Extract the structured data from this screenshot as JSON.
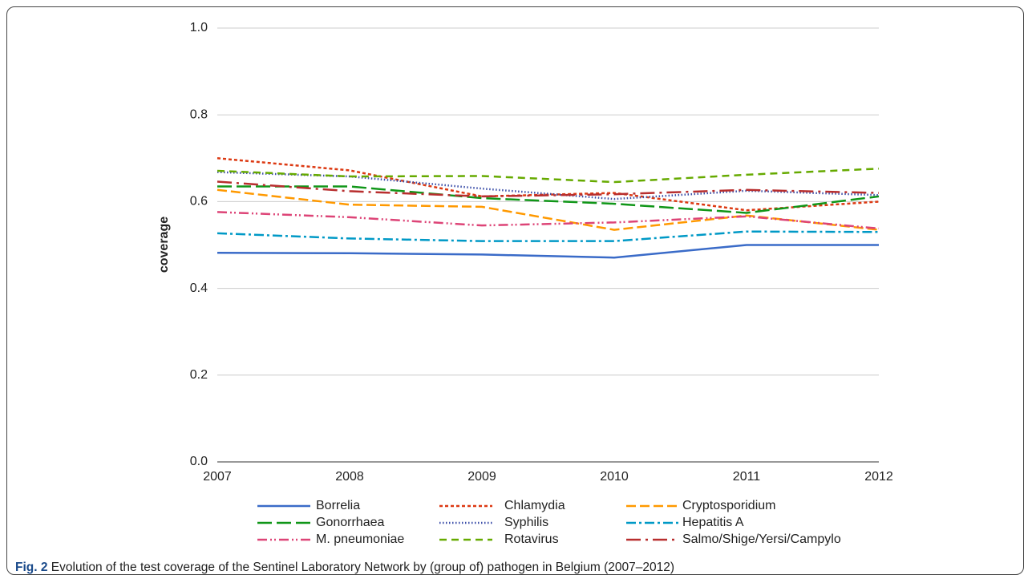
{
  "chart_data": {
    "type": "line",
    "ylabel": "coverage",
    "x": [
      2007,
      2008,
      2009,
      2010,
      2011,
      2012
    ],
    "xlim": [
      2007,
      2012
    ],
    "xticks": [
      2007,
      2008,
      2009,
      2010,
      2011,
      2012
    ],
    "ylim": [
      0,
      1
    ],
    "yticks": [
      {
        "value": 0,
        "label": "0.0"
      },
      0.2,
      0.4,
      0.6,
      0.8,
      {
        "value": 1,
        "label": "1.0"
      }
    ],
    "grid": true,
    "legend": "bottom",
    "series": [
      {
        "name": "Borrelia",
        "color": "#3a6bc8",
        "dash": "none",
        "values": [
          0.482,
          0.481,
          0.478,
          0.471,
          0.5,
          0.5
        ]
      },
      {
        "name": "Chlamydia",
        "color": "#dc3912",
        "dash": "4,3",
        "values": [
          0.7,
          0.672,
          0.612,
          0.62,
          0.58,
          0.6
        ]
      },
      {
        "name": "Cryptosporidium",
        "color": "#ff9900",
        "dash": "12,5",
        "values": [
          0.627,
          0.593,
          0.588,
          0.535,
          0.568,
          0.535
        ]
      },
      {
        "name": "Gonorrhaea",
        "color": "#109618",
        "dash": "18,6",
        "values": [
          0.635,
          0.635,
          0.608,
          0.595,
          0.574,
          0.612
        ]
      },
      {
        "name": "Syphilis",
        "color": "#3b4ea8",
        "dash": "1.5,2.5",
        "values": [
          0.668,
          0.658,
          0.63,
          0.606,
          0.625,
          0.615
        ]
      },
      {
        "name": "Hepatitis A",
        "color": "#0099c6",
        "dash": "12,4,3,4",
        "values": [
          0.527,
          0.515,
          0.509,
          0.509,
          0.531,
          0.53
        ]
      },
      {
        "name": "M. pneumoniae",
        "color": "#dd4477",
        "dash": "12,4,2,3,2,4",
        "values": [
          0.576,
          0.564,
          0.545,
          0.552,
          0.566,
          0.538
        ]
      },
      {
        "name": "Rotavirus",
        "color": "#66aa00",
        "dash": "9,6",
        "values": [
          0.671,
          0.658,
          0.659,
          0.645,
          0.662,
          0.676
        ]
      },
      {
        "name": "Salmo/Shige/Yersi/Campylo",
        "color": "#b82e2e",
        "dash": "18,6,3,6",
        "values": [
          0.646,
          0.624,
          0.612,
          0.617,
          0.627,
          0.62
        ]
      }
    ]
  },
  "caption": {
    "label": "Fig. 2",
    "text": "Evolution of the test coverage of the Sentinel Laboratory Network by (group of) pathogen in Belgium (2007–2012)"
  }
}
